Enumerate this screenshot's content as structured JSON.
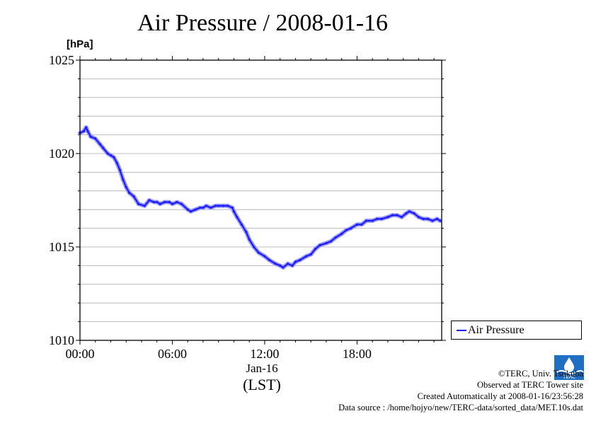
{
  "title": "Air Pressure / 2008-01-16",
  "unit_label": "[hPa]",
  "x_date_label": "Jan-16",
  "x_tz_label": "(LST)",
  "legend": {
    "label": "Air Pressure",
    "color": "#1a1aff"
  },
  "footer": {
    "copyright": "©TERC, Univ. Tsukuba",
    "observed": "Observed at TERC Tower site",
    "created": "Created Automatically at 2008-01-16/23:56:28",
    "source": "Data source : /home/hojyo/new/TERC-data/sorted_data/MET.10s.dat"
  },
  "logo_text": "TERC",
  "chart_data": {
    "type": "line",
    "title": "Air Pressure / 2008-01-16",
    "ylabel": "[hPa]",
    "xlabel": "(LST)",
    "ylim": [
      1010,
      1025
    ],
    "xlim": [
      0,
      23.5
    ],
    "xticks": [
      {
        "value": 0,
        "label": "00:00"
      },
      {
        "value": 6,
        "label": "06:00"
      },
      {
        "value": 12,
        "label": "12:00"
      },
      {
        "value": 18,
        "label": "18:00"
      }
    ],
    "yticks": [
      {
        "value": 1010,
        "label": "1010"
      },
      {
        "value": 1015,
        "label": "1015"
      },
      {
        "value": 1020,
        "label": "1020"
      },
      {
        "value": 1025,
        "label": "1025"
      }
    ],
    "grid": true,
    "legend_position": "right",
    "series": [
      {
        "name": "Air Pressure",
        "color": "#1a1aff",
        "x": [
          0,
          0.25,
          0.4,
          0.5,
          0.7,
          1.0,
          1.3,
          1.5,
          1.8,
          2.0,
          2.2,
          2.4,
          2.6,
          2.8,
          3.0,
          3.2,
          3.5,
          3.8,
          4.2,
          4.5,
          4.8,
          5.0,
          5.2,
          5.5,
          5.8,
          6.0,
          6.3,
          6.6,
          7.0,
          7.2,
          7.5,
          7.8,
          8.0,
          8.2,
          8.5,
          8.8,
          9.0,
          9.3,
          9.6,
          9.9,
          10.0,
          10.2,
          10.5,
          10.8,
          11.0,
          11.3,
          11.6,
          12.0,
          12.3,
          12.7,
          13.0,
          13.2,
          13.5,
          13.8,
          14.0,
          14.3,
          14.7,
          15.0,
          15.3,
          15.6,
          16.0,
          16.3,
          16.6,
          17.0,
          17.3,
          17.6,
          18.0,
          18.3,
          18.6,
          19.0,
          19.3,
          19.6,
          20.0,
          20.3,
          20.6,
          20.9,
          21.2,
          21.4,
          21.7,
          22.0,
          22.3,
          22.6,
          22.9,
          23.2,
          23.4
        ],
        "values": [
          1021.1,
          1021.2,
          1021.4,
          1021.2,
          1020.9,
          1020.8,
          1020.5,
          1020.3,
          1020.0,
          1019.9,
          1019.8,
          1019.5,
          1019.1,
          1018.6,
          1018.2,
          1017.9,
          1017.7,
          1017.3,
          1017.2,
          1017.5,
          1017.4,
          1017.4,
          1017.3,
          1017.4,
          1017.4,
          1017.3,
          1017.4,
          1017.3,
          1017.0,
          1016.9,
          1017.0,
          1017.1,
          1017.1,
          1017.2,
          1017.1,
          1017.2,
          1017.2,
          1017.2,
          1017.2,
          1017.1,
          1016.9,
          1016.6,
          1016.2,
          1015.8,
          1015.4,
          1015.0,
          1014.7,
          1014.5,
          1014.3,
          1014.1,
          1014.0,
          1013.9,
          1014.1,
          1014.0,
          1014.2,
          1014.3,
          1014.5,
          1014.6,
          1014.9,
          1015.1,
          1015.2,
          1015.3,
          1015.5,
          1015.7,
          1015.9,
          1016.0,
          1016.2,
          1016.2,
          1016.4,
          1016.4,
          1016.5,
          1016.5,
          1016.6,
          1016.7,
          1016.7,
          1016.6,
          1016.8,
          1016.9,
          1016.8,
          1016.6,
          1016.5,
          1016.5,
          1016.4,
          1016.5,
          1016.4
        ]
      }
    ]
  }
}
